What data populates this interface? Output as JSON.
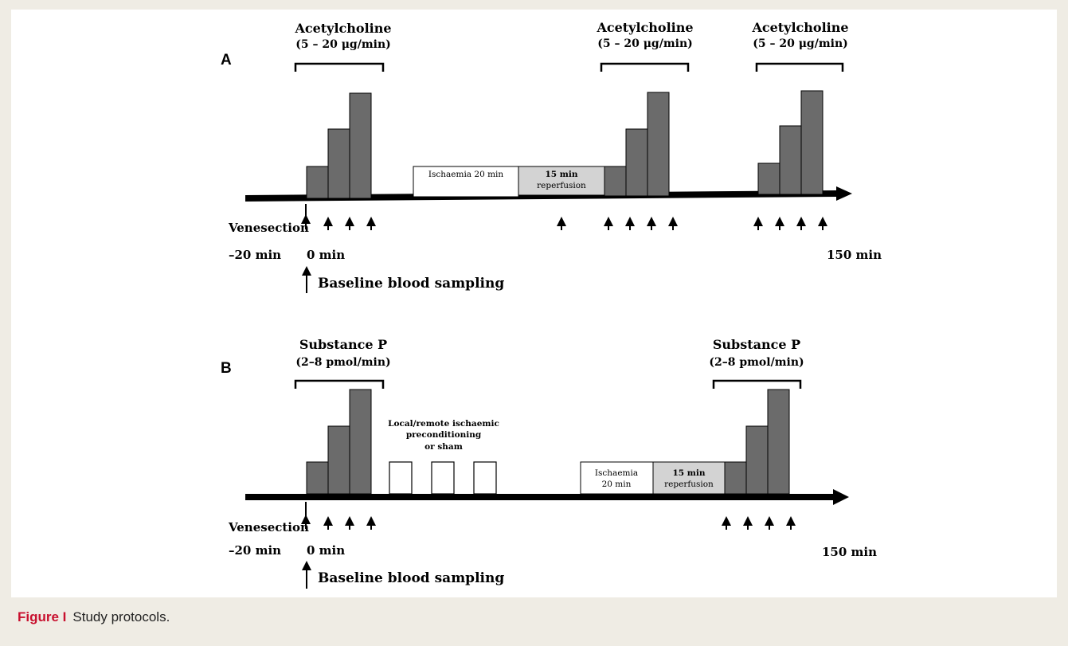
{
  "caption": {
    "label": "Figure I",
    "text": "Study protocols."
  },
  "panel_a": {
    "letter": "A",
    "drug_groups": [
      {
        "name": "Acetylcholine",
        "dose": "(5 – 20 μg/min)"
      },
      {
        "name": "Acetylcholine",
        "dose": "(5 – 20 μg/min)"
      },
      {
        "name": "Acetylcholine",
        "dose": "(5 – 20 μg/min)"
      }
    ],
    "ischaemia_box": "Ischaemia 20 min",
    "reperfusion_box": [
      "15 min",
      "reperfusion"
    ],
    "venesection": "Venesection",
    "time_start": "–20 min",
    "time_zero": "0 min",
    "time_end": "150 min",
    "baseline": "Baseline blood sampling"
  },
  "panel_b": {
    "letter": "B",
    "drug_groups": [
      {
        "name": "Substance P",
        "dose": "(2–8 pmol/min)"
      },
      {
        "name": "Substance P",
        "dose": "(2–8 pmol/min)"
      }
    ],
    "preconditioning": [
      "Local/remote ischaemic",
      "preconditioning",
      "or sham"
    ],
    "ischaemia_box": [
      "Ischaemia",
      "20 min"
    ],
    "reperfusion_box": [
      "15 min",
      "reperfusion"
    ],
    "venesection": "Venesection",
    "time_start": "–20 min",
    "time_zero": "0 min",
    "time_end": "150 min",
    "baseline": "Baseline blood sampling"
  },
  "colors": {
    "bar": "#6b6b6b",
    "reperfusion": "#d3d3d3",
    "caption_accent": "#c8102e",
    "background": "#efece4"
  }
}
